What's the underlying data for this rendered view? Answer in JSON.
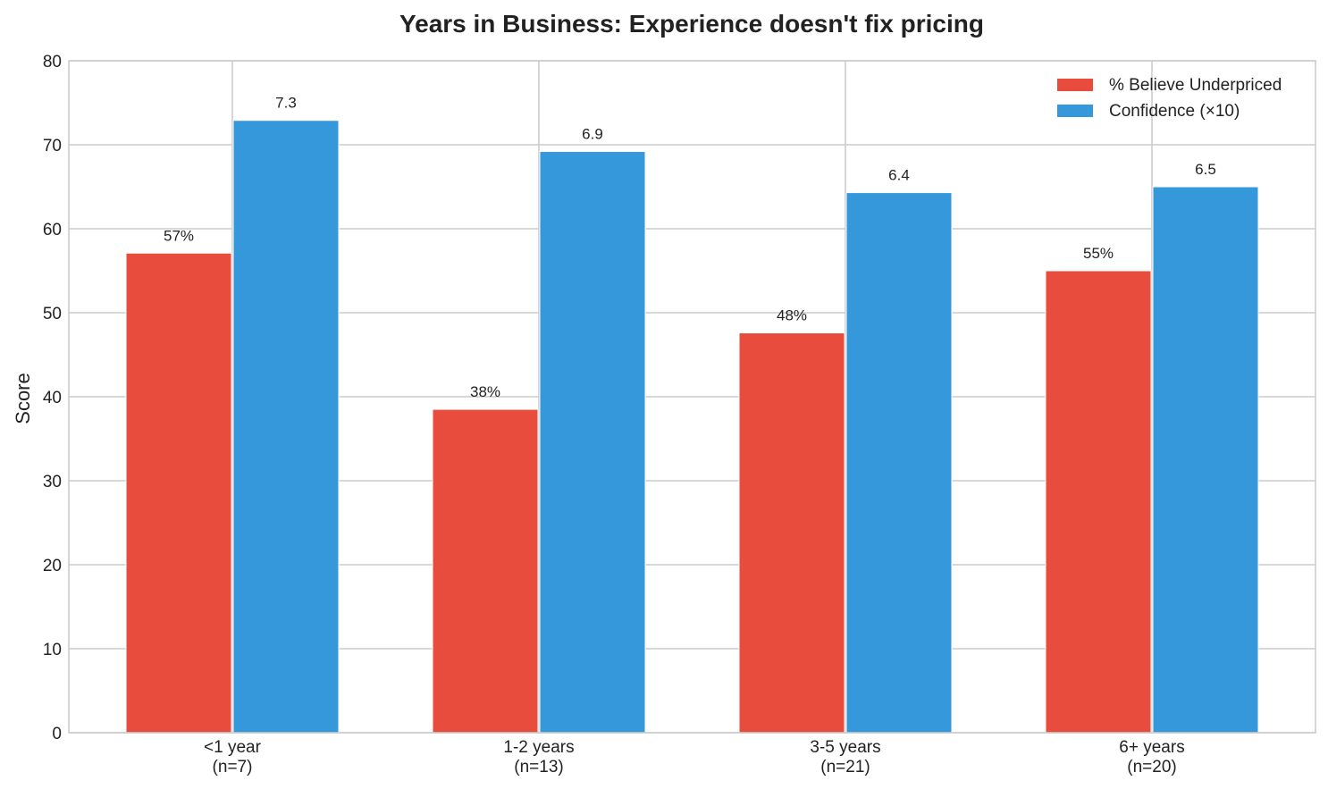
{
  "chart_data": {
    "type": "bar",
    "title": "Years in Business: Experience doesn't fix pricing",
    "ylabel": "Score",
    "xlabel": "",
    "ylim": [
      0,
      80
    ],
    "yticks": [
      0,
      10,
      20,
      30,
      40,
      50,
      60,
      70,
      80
    ],
    "grid": true,
    "legend_position": "top-right",
    "categories": [
      {
        "line1": "<1 year",
        "line2": "(n=7)"
      },
      {
        "line1": "1-2 years",
        "line2": "(n=13)"
      },
      {
        "line1": "3-5 years",
        "line2": "(n=21)"
      },
      {
        "line1": "6+ years",
        "line2": "(n=20)"
      }
    ],
    "series": [
      {
        "name": "% Believe Underpriced",
        "color": "#e74c3c",
        "values": [
          57.1,
          38.5,
          47.6,
          55.0
        ],
        "labels": [
          "57%",
          "38%",
          "48%",
          "55%"
        ]
      },
      {
        "name": "Confidence (×10)",
        "color": "#3498db",
        "values": [
          72.9,
          69.2,
          64.3,
          65.0
        ],
        "labels": [
          "7.3",
          "6.9",
          "6.4",
          "6.5"
        ]
      }
    ]
  }
}
